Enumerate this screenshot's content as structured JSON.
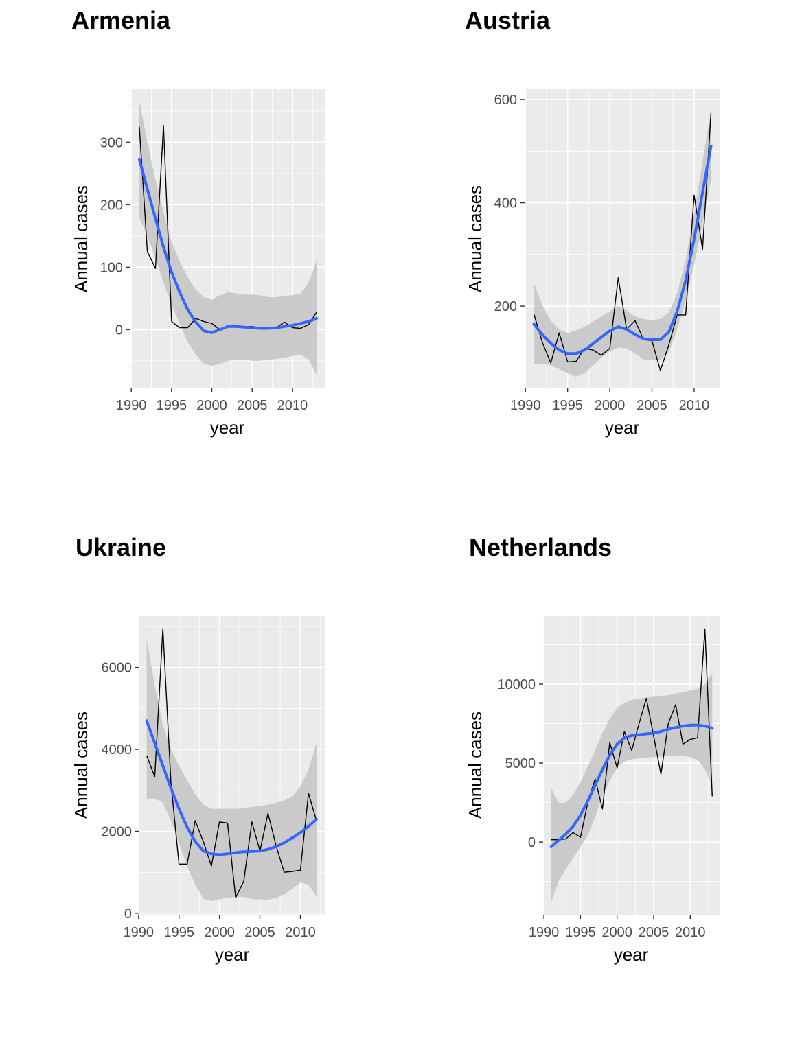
{
  "chart_data": [
    {
      "type": "line",
      "title": "Armenia",
      "xlabel": "year",
      "ylabel": "Annual cases",
      "xlim": [
        1989.9,
        2014.1
      ],
      "ylim": [
        -93,
        385
      ],
      "xticks": [
        1990,
        1995,
        2000,
        2005,
        2010
      ],
      "yticks": [
        0,
        100,
        200,
        300
      ],
      "colors": {
        "panel": "#ebebeb",
        "grid": "#ffffff",
        "observed": "#000000",
        "smooth": "#3366ff",
        "ribbon": "#c4c4c4"
      },
      "series": [
        {
          "kind": "observed",
          "x": [
            1991,
            1992,
            1993,
            1994,
            1995,
            1996,
            1997,
            1998,
            1999,
            2000,
            2001,
            2002,
            2003,
            2004,
            2005,
            2006,
            2007,
            2008,
            2009,
            2010,
            2011,
            2012,
            2013
          ],
          "values": [
            325,
            125,
            98,
            327,
            13,
            3,
            3,
            18,
            13,
            10,
            0,
            5,
            5,
            5,
            5,
            3,
            3,
            3,
            12,
            3,
            2,
            8,
            28
          ]
        },
        {
          "kind": "smooth",
          "x": [
            1991,
            1992,
            1993,
            1994,
            1995,
            1996,
            1997,
            1998,
            1999,
            2000,
            2001,
            2002,
            2003,
            2004,
            2005,
            2006,
            2007,
            2008,
            2009,
            2010,
            2011,
            2012,
            2013
          ],
          "values": [
            273,
            225,
            178,
            132,
            92,
            60,
            32,
            12,
            -2,
            -5,
            0,
            5,
            5,
            4,
            3,
            2,
            2,
            3,
            5,
            7,
            10,
            13,
            18
          ],
          "lower": [
            180,
            150,
            115,
            75,
            40,
            10,
            -20,
            -40,
            -55,
            -58,
            -55,
            -50,
            -48,
            -48,
            -50,
            -50,
            -48,
            -47,
            -45,
            -42,
            -40,
            -48,
            -72
          ],
          "upper": [
            367,
            300,
            240,
            189,
            140,
            110,
            84,
            64,
            52,
            48,
            55,
            60,
            58,
            56,
            56,
            55,
            52,
            52,
            54,
            55,
            58,
            75,
            110
          ]
        }
      ]
    },
    {
      "type": "line",
      "title": "Austria",
      "xlabel": "year",
      "ylabel": "Annual cases",
      "xlim": [
        1989.9,
        2013.1
      ],
      "ylim": [
        42,
        620
      ],
      "xticks": [
        1990,
        1995,
        2000,
        2005,
        2010
      ],
      "yticks": [
        200,
        400,
        600
      ],
      "colors": {
        "panel": "#ebebeb",
        "grid": "#ffffff",
        "observed": "#000000",
        "smooth": "#3366ff",
        "ribbon": "#c4c4c4"
      },
      "series": [
        {
          "kind": "observed",
          "x": [
            1991,
            1992,
            1993,
            1994,
            1995,
            1996,
            1997,
            1998,
            1999,
            2000,
            2001,
            2002,
            2003,
            2004,
            2005,
            2006,
            2007,
            2008,
            2009,
            2010,
            2011,
            2012
          ],
          "values": [
            185,
            130,
            90,
            148,
            92,
            93,
            118,
            115,
            105,
            118,
            255,
            155,
            172,
            135,
            133,
            75,
            125,
            183,
            183,
            415,
            310,
            575
          ]
        },
        {
          "kind": "smooth",
          "x": [
            1991,
            1992,
            1993,
            1994,
            1995,
            1996,
            1997,
            1998,
            1999,
            2000,
            2001,
            2002,
            2003,
            2004,
            2005,
            2006,
            2007,
            2008,
            2009,
            2010,
            2011,
            2012
          ],
          "values": [
            165,
            145,
            128,
            115,
            108,
            108,
            115,
            127,
            140,
            152,
            160,
            155,
            145,
            137,
            135,
            135,
            150,
            190,
            250,
            330,
            420,
            510
          ],
          "lower": [
            88,
            88,
            85,
            78,
            70,
            63,
            70,
            85,
            100,
            112,
            120,
            118,
            108,
            97,
            95,
            95,
            112,
            155,
            210,
            280,
            360,
            445
          ],
          "upper": [
            245,
            202,
            172,
            155,
            148,
            153,
            160,
            170,
            180,
            190,
            200,
            192,
            180,
            175,
            173,
            175,
            188,
            225,
            290,
            380,
            480,
            578
          ]
        }
      ]
    },
    {
      "type": "line",
      "title": "Ukraine",
      "xlabel": "year",
      "ylabel": "Annual cases",
      "xlim": [
        1990.1,
        2013.1
      ],
      "ylim": [
        -35,
        7250
      ],
      "xticks": [
        1990,
        1995,
        2000,
        2005,
        2010
      ],
      "yticks": [
        0,
        2000,
        4000,
        6000
      ],
      "colors": {
        "panel": "#ebebeb",
        "grid": "#ffffff",
        "observed": "#000000",
        "smooth": "#3366ff",
        "ribbon": "#c4c4c4"
      },
      "series": [
        {
          "kind": "observed",
          "x": [
            1991,
            1992,
            1993,
            1994,
            1995,
            1996,
            1997,
            1998,
            1999,
            2000,
            2001,
            2002,
            2003,
            2004,
            2005,
            2006,
            2007,
            2008,
            2009,
            2010,
            2011,
            2012
          ],
          "values": [
            3850,
            3330,
            6950,
            3180,
            1200,
            1200,
            2260,
            1750,
            1150,
            2230,
            2200,
            380,
            780,
            2230,
            1520,
            2440,
            1650,
            1000,
            1020,
            1050,
            2930,
            2250
          ]
        },
        {
          "kind": "smooth",
          "x": [
            1991,
            1992,
            1993,
            1994,
            1995,
            1996,
            1997,
            1998,
            1999,
            2000,
            2001,
            2002,
            2003,
            2004,
            2005,
            2006,
            2007,
            2008,
            2009,
            2010,
            2011,
            2012
          ],
          "values": [
            4700,
            4150,
            3600,
            3050,
            2550,
            2100,
            1750,
            1520,
            1450,
            1430,
            1450,
            1480,
            1500,
            1510,
            1520,
            1560,
            1630,
            1720,
            1840,
            1970,
            2120,
            2300
          ],
          "lower": [
            2800,
            2800,
            2700,
            2250,
            1700,
            1150,
            700,
            350,
            300,
            340,
            380,
            400,
            400,
            350,
            340,
            330,
            380,
            450,
            600,
            750,
            700,
            400
          ],
          "upper": [
            6700,
            5550,
            4600,
            4000,
            3600,
            3250,
            2900,
            2650,
            2550,
            2550,
            2550,
            2550,
            2560,
            2600,
            2620,
            2650,
            2700,
            2750,
            2850,
            3100,
            3500,
            4150
          ]
        }
      ]
    },
    {
      "type": "line",
      "title": "Netherlands",
      "xlabel": "year",
      "ylabel": "Annual cases",
      "xlim": [
        1989.9,
        2014.1
      ],
      "ylim": [
        -4600,
        14300
      ],
      "xticks": [
        1990,
        1995,
        2000,
        2005,
        2010
      ],
      "yticks": [
        0,
        5000,
        10000
      ],
      "colors": {
        "panel": "#ebebeb",
        "grid": "#ffffff",
        "observed": "#000000",
        "smooth": "#3366ff",
        "ribbon": "#c4c4c4"
      },
      "series": [
        {
          "kind": "observed",
          "x": [
            1991,
            1992,
            1993,
            1994,
            1995,
            1996,
            1997,
            1998,
            1999,
            2000,
            2001,
            2002,
            2003,
            2004,
            2005,
            2006,
            2007,
            2008,
            2009,
            2010,
            2011,
            2012,
            2013
          ],
          "values": [
            150,
            150,
            200,
            600,
            300,
            2500,
            4000,
            2100,
            6300,
            4700,
            7000,
            5800,
            7500,
            9100,
            6700,
            4300,
            7500,
            8700,
            6200,
            6500,
            6600,
            13500,
            2900
          ]
        },
        {
          "kind": "smooth",
          "x": [
            1991,
            1992,
            1993,
            1994,
            1995,
            1996,
            1997,
            1998,
            1999,
            2000,
            2001,
            2002,
            2003,
            2004,
            2005,
            2006,
            2007,
            2008,
            2009,
            2010,
            2011,
            2012,
            2013
          ],
          "values": [
            -300,
            100,
            500,
            1000,
            1700,
            2600,
            3600,
            4600,
            5500,
            6200,
            6600,
            6750,
            6800,
            6850,
            6900,
            7000,
            7150,
            7250,
            7350,
            7400,
            7400,
            7350,
            7200
          ],
          "lower": [
            -3800,
            -2500,
            -1700,
            -1000,
            -300,
            400,
            1600,
            2900,
            3900,
            4700,
            5100,
            5250,
            5300,
            5350,
            5380,
            5400,
            5450,
            5450,
            5450,
            5380,
            5200,
            4600,
            3600
          ],
          "upper": [
            3400,
            2500,
            2500,
            3000,
            3800,
            4800,
            5800,
            6900,
            7800,
            8500,
            8800,
            9000,
            9100,
            9150,
            9200,
            9250,
            9300,
            9400,
            9500,
            9600,
            9700,
            10000,
            10700
          ]
        }
      ]
    }
  ]
}
